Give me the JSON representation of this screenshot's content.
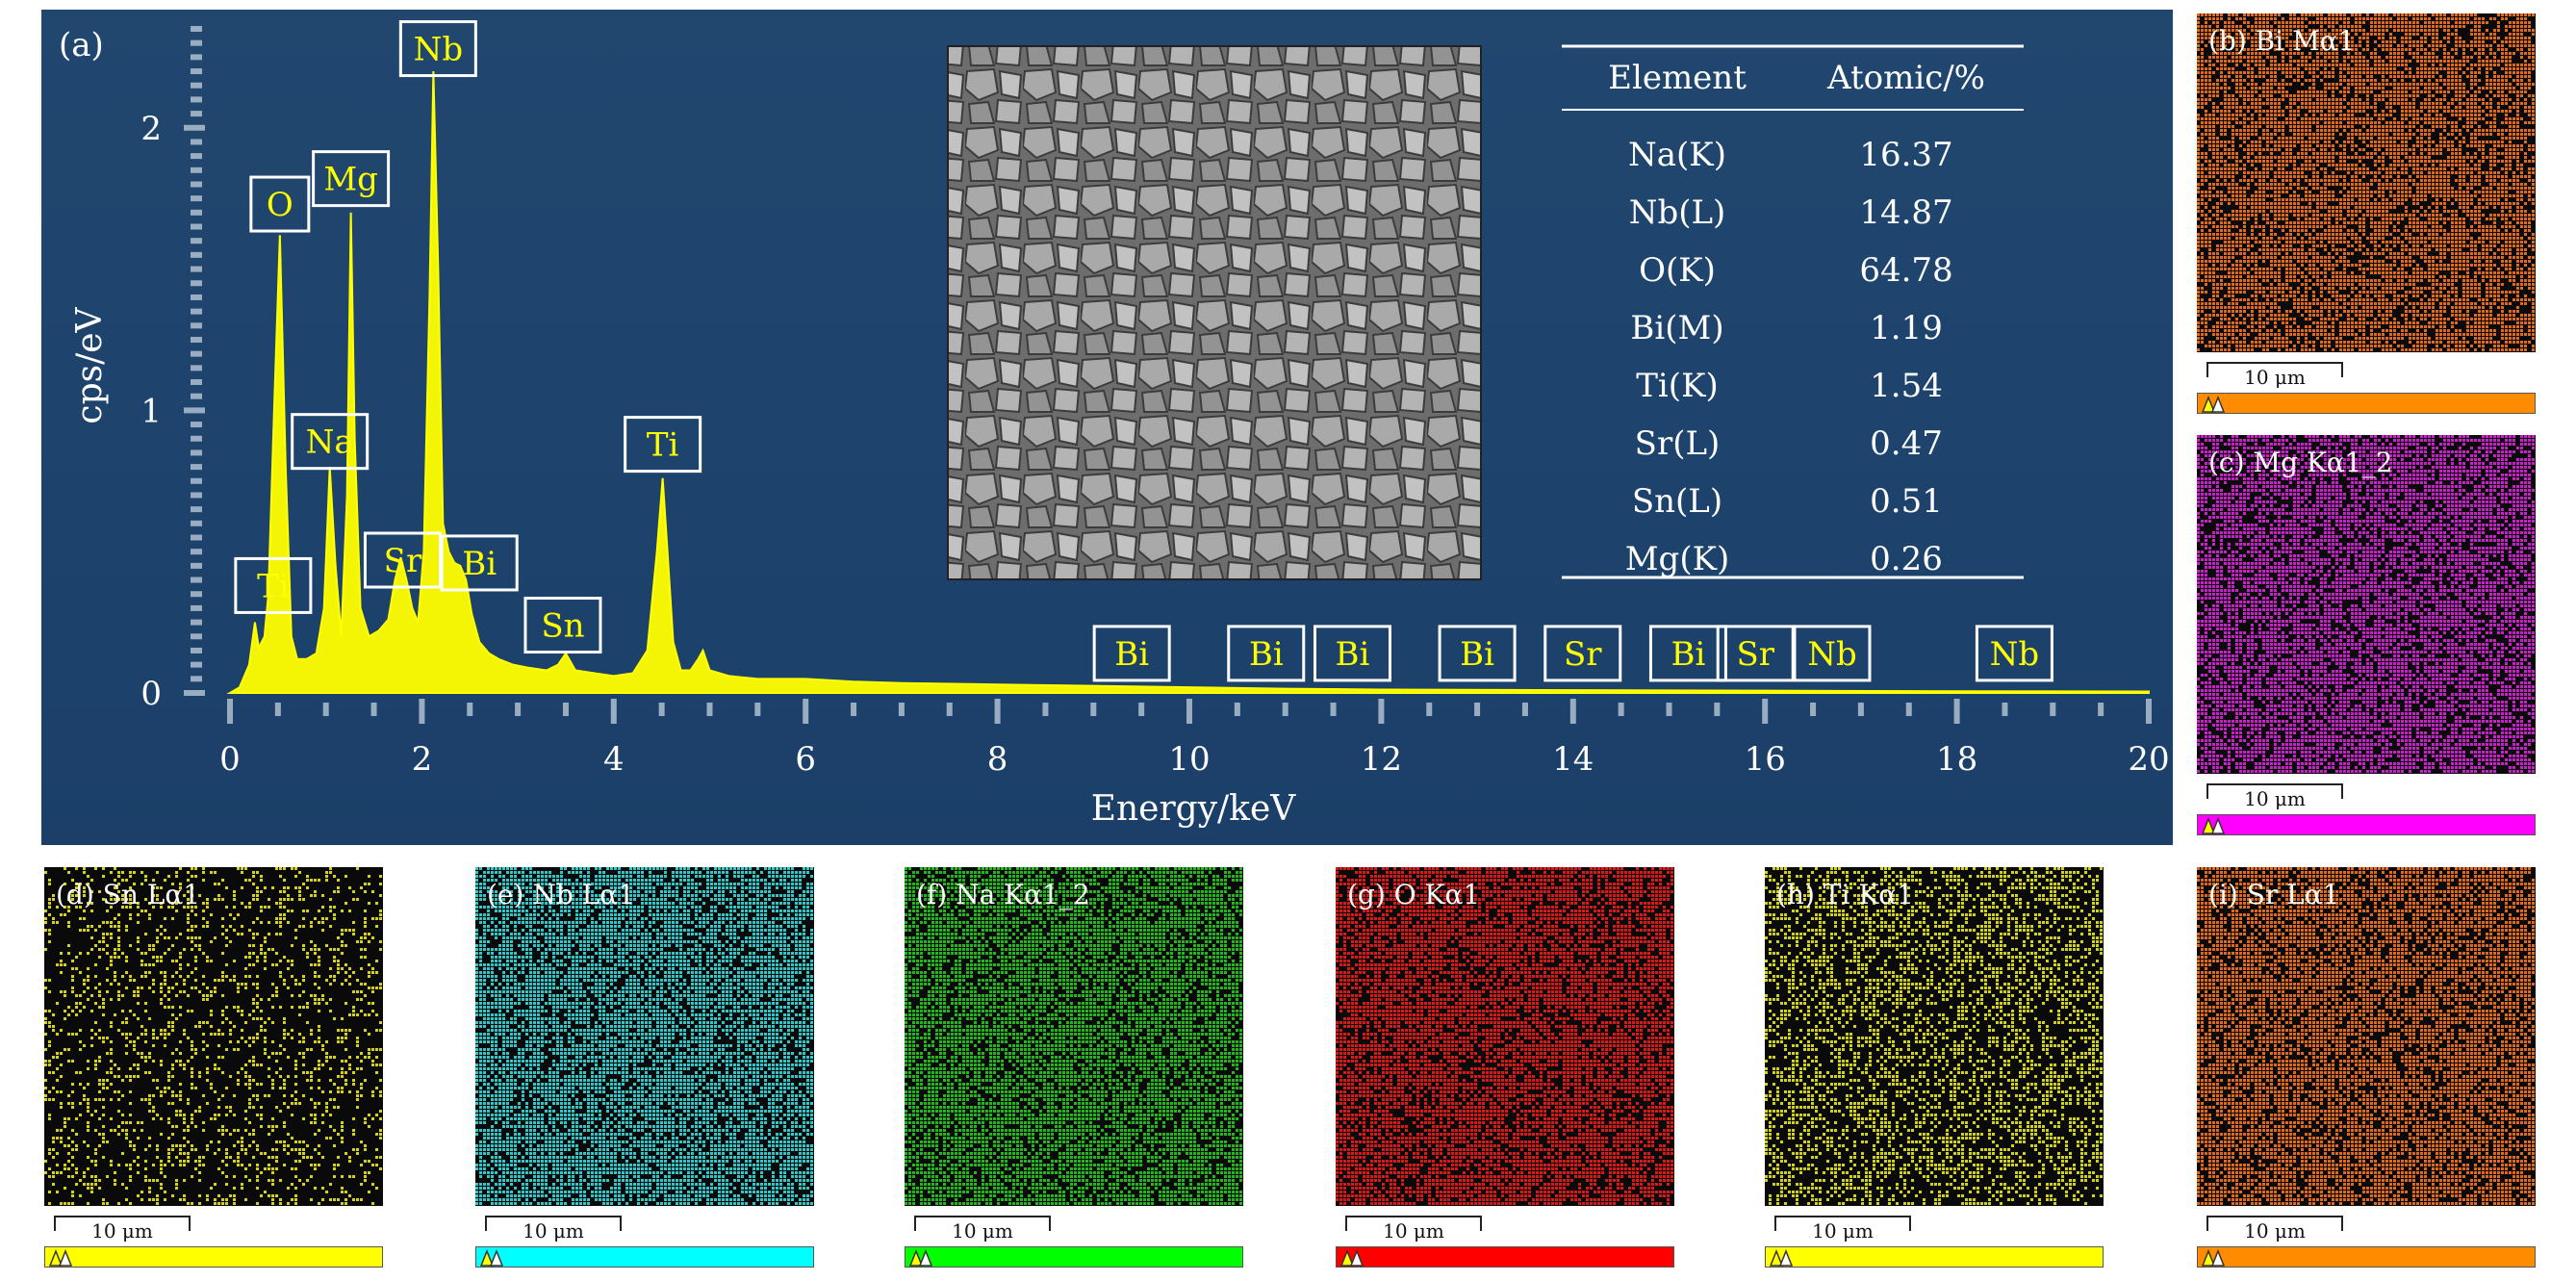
{
  "figure": {
    "panel_a_label": "(a)",
    "map_labels": {
      "b": "(b) Bi Mα1",
      "c": "(c) Mg Kα1_2",
      "d": "(d) Sn Lα1",
      "e": "(e) Nb Lα1",
      "f": "(f) Na Kα1_2",
      "g": "(g) O Kα1",
      "h": "(h) Ti Kα1",
      "i": "(i) Sr Lα1"
    },
    "scale_bar_text": "10 μm",
    "map_colors": {
      "b": "#e06a1c",
      "c": "#cc1fcc",
      "d": "#d6d21c",
      "e": "#2fc7c7",
      "f": "#22b81c",
      "g": "#dd1616",
      "h": "#d2d21c",
      "i": "#e06a1c"
    },
    "colorbar_colors": {
      "b": "#ff8c00",
      "c": "#ff00ff",
      "d": "#ffff00",
      "e": "#00ffff",
      "f": "#00ff00",
      "g": "#ff0000",
      "h": "#ffff00",
      "i": "#ff8c00"
    }
  },
  "chart_data": {
    "type": "line",
    "xlabel": "Energy/keV",
    "ylabel": "cps/eV",
    "xlim": [
      0,
      20
    ],
    "ylim": [
      0,
      2.35
    ],
    "x_ticks": [
      0,
      2,
      4,
      6,
      8,
      10,
      12,
      14,
      16,
      18,
      20
    ],
    "y_ticks": [
      0,
      1,
      2
    ],
    "line_color": "#ffff00",
    "series": [
      {
        "x": [
          0.0,
          0.1,
          0.2,
          0.26,
          0.3,
          0.36,
          0.4,
          0.46,
          0.52,
          0.58,
          0.64,
          0.7,
          0.8,
          0.9,
          0.98,
          1.04,
          1.1,
          1.16,
          1.22,
          1.26,
          1.3,
          1.36,
          1.45,
          1.55,
          1.65,
          1.72,
          1.78,
          1.84,
          1.9,
          1.96,
          2.02,
          2.08,
          2.12,
          2.17,
          2.22,
          2.28,
          2.34,
          2.4,
          2.46,
          2.52,
          2.6,
          2.7,
          2.8,
          2.95,
          3.1,
          3.3,
          3.42,
          3.5,
          3.6,
          3.8,
          4.0,
          4.2,
          4.35,
          4.45,
          4.51,
          4.56,
          4.62,
          4.7,
          4.8,
          4.88,
          4.93,
          5.0,
          5.2,
          5.5,
          6.0,
          6.5,
          7.0,
          8.0,
          9.0,
          10.0,
          11.0,
          12.0,
          14.0,
          16.0,
          18.0,
          20.0
        ],
        "y": [
          0.0,
          0.02,
          0.1,
          0.25,
          0.16,
          0.2,
          0.35,
          1.0,
          1.62,
          0.8,
          0.2,
          0.12,
          0.12,
          0.14,
          0.3,
          0.8,
          0.45,
          0.2,
          0.7,
          1.7,
          0.9,
          0.3,
          0.2,
          0.22,
          0.26,
          0.4,
          0.48,
          0.4,
          0.3,
          0.25,
          0.5,
          1.4,
          2.2,
          1.5,
          0.6,
          0.5,
          0.46,
          0.45,
          0.4,
          0.28,
          0.18,
          0.14,
          0.12,
          0.1,
          0.09,
          0.08,
          0.1,
          0.14,
          0.08,
          0.07,
          0.06,
          0.07,
          0.15,
          0.5,
          0.76,
          0.5,
          0.18,
          0.08,
          0.08,
          0.12,
          0.15,
          0.08,
          0.06,
          0.05,
          0.05,
          0.04,
          0.035,
          0.03,
          0.025,
          0.02,
          0.015,
          0.012,
          0.01,
          0.008,
          0.006,
          0.005
        ]
      }
    ],
    "peak_labels": [
      {
        "text": "Nb",
        "x": 2.17,
        "y": 2.28
      },
      {
        "text": "O",
        "x": 0.52,
        "y": 1.73
      },
      {
        "text": "Mg",
        "x": 1.26,
        "y": 1.82
      },
      {
        "text": "Na",
        "x": 1.04,
        "y": 0.89
      },
      {
        "text": "Ti",
        "x": 4.51,
        "y": 0.88
      },
      {
        "text": "Sr",
        "x": 1.8,
        "y": 0.47
      },
      {
        "text": "Bi",
        "x": 2.6,
        "y": 0.46
      },
      {
        "text": "Sn",
        "x": 3.47,
        "y": 0.24
      },
      {
        "text": "Ti",
        "x": 0.45,
        "y": 0.38
      },
      {
        "text": "Bi",
        "x": 9.4,
        "y": 0.14
      },
      {
        "text": "Bi",
        "x": 10.8,
        "y": 0.14
      },
      {
        "text": "Bi",
        "x": 11.7,
        "y": 0.14
      },
      {
        "text": "Bi",
        "x": 13.0,
        "y": 0.14
      },
      {
        "text": "Sr",
        "x": 14.1,
        "y": 0.14
      },
      {
        "text": "Bi",
        "x": 15.2,
        "y": 0.14
      },
      {
        "text": "Sr",
        "x": 15.9,
        "y": 0.14
      },
      {
        "text": "Nb",
        "x": 16.7,
        "y": 0.14
      },
      {
        "text": "Nb",
        "x": 18.6,
        "y": 0.14
      }
    ],
    "table": {
      "headers": [
        "Element",
        "Atomic/%"
      ],
      "rows": [
        [
          "Na(K)",
          "16.37"
        ],
        [
          "Nb(L)",
          "14.87"
        ],
        [
          "O(K)",
          "64.78"
        ],
        [
          "Bi(M)",
          "1.19"
        ],
        [
          "Ti(K)",
          "1.54"
        ],
        [
          "Sr(L)",
          "0.47"
        ],
        [
          "Sn(L)",
          "0.51"
        ],
        [
          "Mg(K)",
          "0.26"
        ]
      ]
    }
  }
}
